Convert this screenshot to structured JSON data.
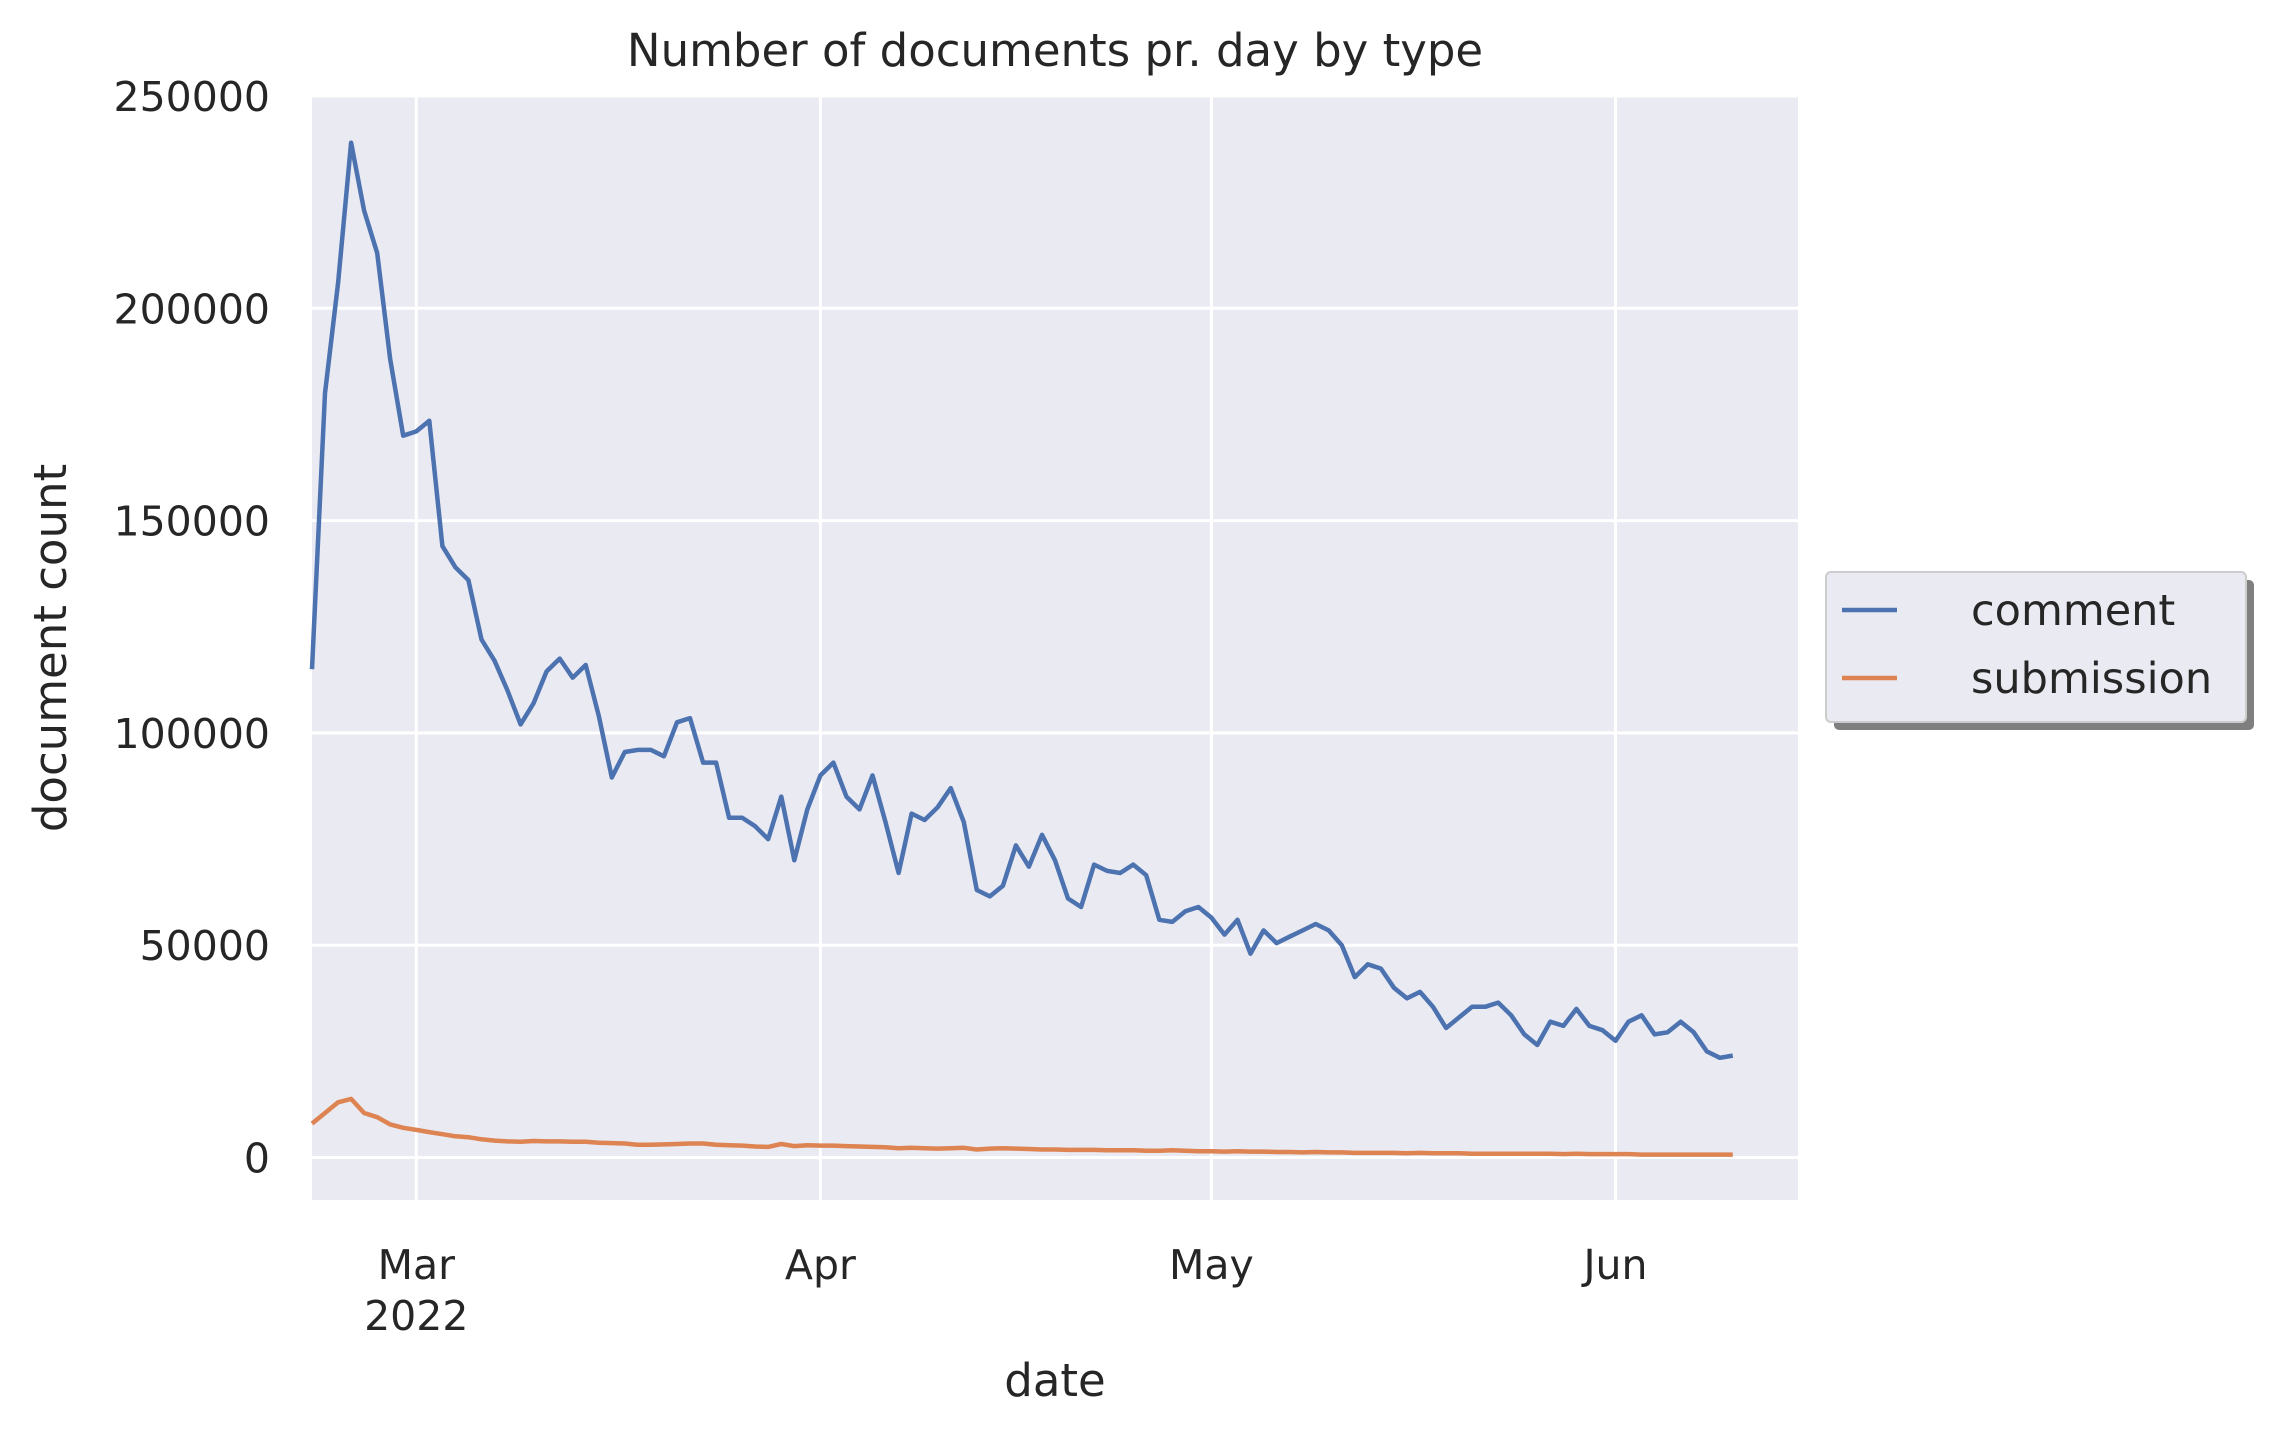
{
  "chart_data": {
    "type": "line",
    "title": "Number of documents pr. day by type",
    "xlabel": "date",
    "ylabel": "document count",
    "x_start": "2022-02-21",
    "x_end": "2022-06-15",
    "x_ticks": [
      {
        "date": "2022-03-01",
        "label": "Mar",
        "sublabel": "2022"
      },
      {
        "date": "2022-04-01",
        "label": "Apr",
        "sublabel": ""
      },
      {
        "date": "2022-05-01",
        "label": "May",
        "sublabel": ""
      },
      {
        "date": "2022-06-01",
        "label": "Jun",
        "sublabel": ""
      }
    ],
    "y_ticks": [
      0,
      50000,
      100000,
      150000,
      200000,
      250000
    ],
    "ylim": [
      -10000,
      250000
    ],
    "grid": true,
    "legend_position": "right",
    "series": [
      {
        "name": "comment",
        "color": "#4c72b0",
        "values": [
          115000,
          180000,
          206000,
          239000,
          223000,
          213000,
          188000,
          170000,
          171000,
          173500,
          144000,
          139000,
          136000,
          122000,
          117000,
          110000,
          102000,
          107000,
          114500,
          117500,
          113000,
          116000,
          104000,
          89500,
          95500,
          96000,
          96000,
          94500,
          102500,
          103500,
          93000,
          93000,
          80000,
          80000,
          78000,
          75000,
          85000,
          70000,
          82000,
          90000,
          93000,
          85000,
          82000,
          90000,
          79000,
          67000,
          81000,
          79500,
          82500,
          87000,
          79000,
          63000,
          61500,
          64000,
          73500,
          68500,
          76000,
          70000,
          61000,
          59000,
          69000,
          67500,
          67000,
          69000,
          66500,
          56000,
          55500,
          58000,
          59000,
          56500,
          52500,
          56000,
          48000,
          53500,
          50500,
          52000,
          53500,
          55000,
          53500,
          50000,
          42500,
          45500,
          44500,
          40000,
          37500,
          39000,
          35500,
          30500,
          33000,
          35500,
          35500,
          36500,
          33500,
          29000,
          26500,
          32000,
          31000,
          35000,
          31000,
          30000,
          27500,
          32000,
          33500,
          29000,
          29500,
          32000,
          29500,
          25000,
          23500,
          24000
        ]
      },
      {
        "name": "submission",
        "color": "#dd8452",
        "values": [
          8000,
          10500,
          13000,
          13800,
          10500,
          9500,
          7800,
          7000,
          6500,
          6000,
          5500,
          5000,
          4800,
          4300,
          4000,
          3800,
          3700,
          3900,
          3800,
          3800,
          3700,
          3700,
          3500,
          3400,
          3300,
          3000,
          3000,
          3100,
          3200,
          3300,
          3300,
          3000,
          2900,
          2800,
          2600,
          2500,
          3200,
          2700,
          2900,
          2800,
          2800,
          2700,
          2600,
          2500,
          2400,
          2200,
          2300,
          2200,
          2100,
          2200,
          2300,
          1900,
          2100,
          2200,
          2100,
          2000,
          1900,
          1900,
          1800,
          1800,
          1800,
          1700,
          1700,
          1700,
          1600,
          1600,
          1700,
          1600,
          1500,
          1500,
          1400,
          1500,
          1400,
          1400,
          1300,
          1300,
          1200,
          1300,
          1200,
          1200,
          1100,
          1100,
          1100,
          1100,
          1000,
          1100,
          1000,
          1000,
          1000,
          900,
          900,
          900,
          900,
          900,
          900,
          900,
          800,
          900,
          800,
          800,
          800,
          800,
          700,
          700,
          700,
          700,
          700,
          700,
          700,
          700
        ]
      }
    ]
  }
}
